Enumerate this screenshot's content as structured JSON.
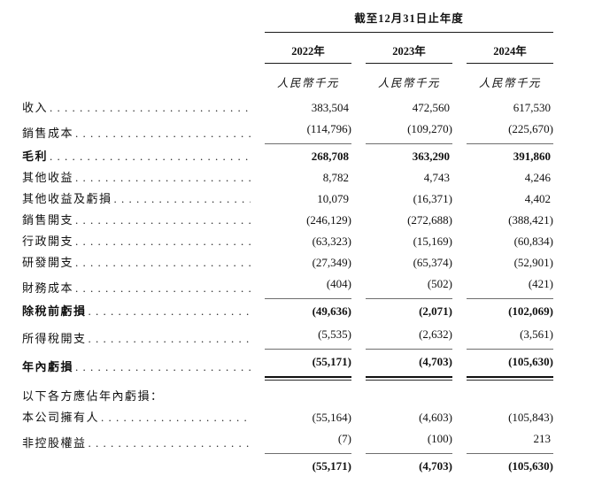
{
  "table": {
    "period_header": "截至12月31日止年度",
    "columns": [
      "2022年",
      "2023年",
      "2024年"
    ],
    "unit_label": "人民幣千元",
    "rows": [
      {
        "label": "收入",
        "values": [
          "383,504",
          "472,560",
          "617,530"
        ]
      },
      {
        "label": "銷售成本",
        "values": [
          "(114,796)",
          "(109,270)",
          "(225,670)"
        ]
      },
      {
        "label": "毛利",
        "bold": true,
        "values": [
          "268,708",
          "363,290",
          "391,860"
        ]
      },
      {
        "label": "其他收益",
        "values": [
          "8,782",
          "4,743",
          "4,246"
        ]
      },
      {
        "label": "其他收益及虧損",
        "values": [
          "10,079",
          "(16,371)",
          "4,402"
        ]
      },
      {
        "label": "銷售開支",
        "values": [
          "(246,129)",
          "(272,688)",
          "(388,421)"
        ]
      },
      {
        "label": "行政開支",
        "values": [
          "(63,323)",
          "(15,169)",
          "(60,834)"
        ]
      },
      {
        "label": "研發開支",
        "values": [
          "(27,349)",
          "(65,374)",
          "(52,901)"
        ]
      },
      {
        "label": "財務成本",
        "values": [
          "(404)",
          "(502)",
          "(421)"
        ]
      },
      {
        "label": "除稅前虧損",
        "bold": true,
        "values": [
          "(49,636)",
          "(2,071)",
          "(102,069)"
        ]
      },
      {
        "label": "所得稅開支",
        "values": [
          "(5,535)",
          "(2,632)",
          "(3,561)"
        ]
      },
      {
        "label": "年內虧損",
        "bold": true,
        "values": [
          "(55,171)",
          "(4,703)",
          "(105,630)"
        ]
      },
      {
        "label": "以下各方應佔年內虧損：",
        "section": true,
        "values": [
          "",
          "",
          ""
        ]
      },
      {
        "label": "本公司擁有人",
        "values": [
          "(55,164)",
          "(4,603)",
          "(105,843)"
        ]
      },
      {
        "label": "非控股權益",
        "values": [
          "(7)",
          "(100)",
          "213"
        ]
      },
      {
        "label": "",
        "bold": true,
        "values": [
          "(55,171)",
          "(4,703)",
          "(105,630)"
        ]
      }
    ]
  },
  "colors": {
    "text": "#111111",
    "header_rule": "#1a1a1a",
    "row_underline": "#6e6e6e"
  }
}
